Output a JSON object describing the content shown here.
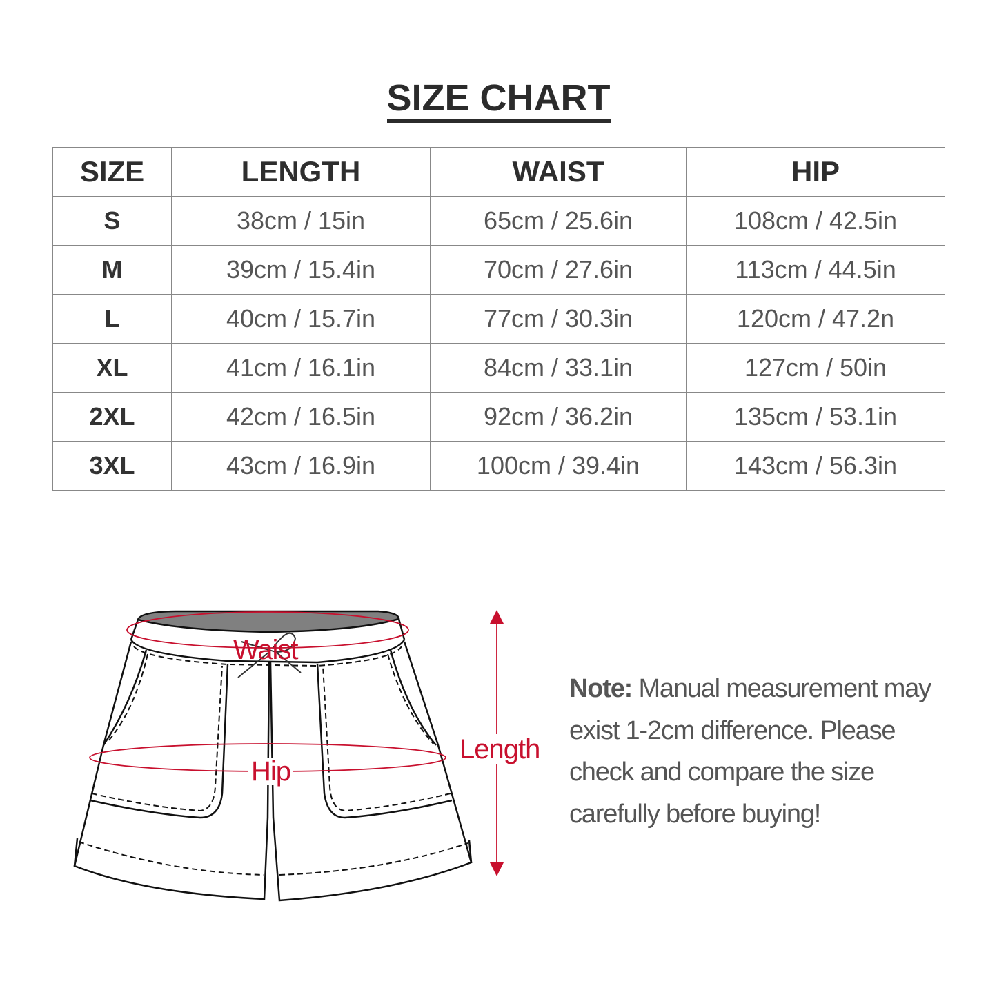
{
  "title": "SIZE CHART",
  "table": {
    "headers": [
      "SIZE",
      "LENGTH",
      "WAIST",
      "HIP"
    ],
    "rows": [
      [
        "S",
        "38cm / 15in",
        "65cm / 25.6in",
        "108cm / 42.5in"
      ],
      [
        "M",
        "39cm / 15.4in",
        "70cm / 27.6in",
        "113cm / 44.5in"
      ],
      [
        "L",
        "40cm / 15.7in",
        "77cm / 30.3in",
        "120cm / 47.2n"
      ],
      [
        "XL",
        "41cm / 16.1in",
        "84cm / 33.1in",
        "127cm / 50in"
      ],
      [
        "2XL",
        "42cm / 16.5in",
        "92cm / 36.2in",
        "135cm / 53.1in"
      ],
      [
        "3XL",
        "43cm / 16.9in",
        "100cm / 39.4in",
        "143cm / 56.3in"
      ]
    ]
  },
  "diagram": {
    "waist_label": "Waist",
    "hip_label": "Hip",
    "length_label": "Length",
    "accent_color": "#c8102e"
  },
  "note": {
    "label": "Note:",
    "text": " Manual measurement may exist 1-2cm difference. Please check and compare the size carefully before buying!"
  }
}
